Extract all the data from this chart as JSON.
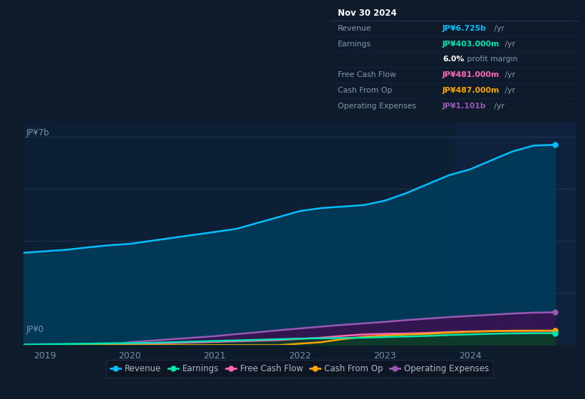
{
  "background_color": "#0d1b2a",
  "plot_bg_color": "#0d1f35",
  "highlight_bg_color": "#112240",
  "ylabel_top": "JP¥7b",
  "ylabel_bottom": "JP¥0",
  "x_ticks": [
    2019.0,
    2020.0,
    2021.0,
    2022.0,
    2023.0,
    2024.0
  ],
  "x_range": [
    2018.75,
    2025.25
  ],
  "y_range": [
    0,
    7500000000
  ],
  "series": {
    "Revenue": {
      "color": "#00bfff",
      "fill_color": "#003d5c",
      "x": [
        2018.75,
        2019.0,
        2019.25,
        2019.5,
        2019.75,
        2020.0,
        2020.25,
        2020.5,
        2020.75,
        2021.0,
        2021.25,
        2021.5,
        2021.75,
        2022.0,
        2022.25,
        2022.5,
        2022.75,
        2023.0,
        2023.25,
        2023.5,
        2023.75,
        2024.0,
        2024.25,
        2024.5,
        2024.75,
        2025.0
      ],
      "y": [
        3100,
        3150,
        3200,
        3280,
        3350,
        3400,
        3500,
        3600,
        3700,
        3800,
        3900,
        4100,
        4300,
        4500,
        4600,
        4650,
        4700,
        4850,
        5100,
        5400,
        5700,
        5900,
        6200,
        6500,
        6700,
        6725
      ]
    },
    "Earnings": {
      "color": "#00e5b0",
      "fill_color": "#003d30",
      "x": [
        2018.75,
        2019.0,
        2019.25,
        2019.5,
        2019.75,
        2020.0,
        2020.25,
        2020.5,
        2020.75,
        2021.0,
        2021.25,
        2021.5,
        2021.75,
        2022.0,
        2022.25,
        2022.5,
        2022.75,
        2023.0,
        2023.25,
        2023.5,
        2023.75,
        2024.0,
        2024.25,
        2024.5,
        2024.75,
        2025.0
      ],
      "y": [
        20,
        30,
        40,
        50,
        60,
        70,
        80,
        100,
        120,
        140,
        160,
        180,
        200,
        220,
        230,
        240,
        250,
        270,
        290,
        310,
        340,
        360,
        380,
        395,
        400,
        403
      ]
    },
    "Free Cash Flow": {
      "color": "#ff69b4",
      "fill_color": "#5a1030",
      "x": [
        2018.75,
        2019.0,
        2019.25,
        2019.5,
        2019.75,
        2020.0,
        2020.25,
        2020.5,
        2020.75,
        2021.0,
        2021.25,
        2021.5,
        2021.75,
        2022.0,
        2022.25,
        2022.5,
        2022.75,
        2023.0,
        2023.25,
        2023.5,
        2023.75,
        2024.0,
        2024.25,
        2024.5,
        2024.75,
        2025.0
      ],
      "y": [
        0,
        5,
        10,
        20,
        30,
        40,
        50,
        70,
        90,
        110,
        130,
        150,
        170,
        210,
        250,
        310,
        360,
        380,
        390,
        410,
        440,
        460,
        470,
        480,
        480,
        481
      ]
    },
    "Cash From Op": {
      "color": "#ffa500",
      "fill_color": "#5a3000",
      "x": [
        2018.75,
        2019.0,
        2019.25,
        2019.5,
        2019.75,
        2020.0,
        2020.25,
        2020.5,
        2020.75,
        2021.0,
        2021.25,
        2021.5,
        2021.75,
        2022.0,
        2022.25,
        2022.5,
        2022.75,
        2023.0,
        2023.25,
        2023.5,
        2023.75,
        2024.0,
        2024.25,
        2024.5,
        2024.75,
        2025.0
      ],
      "y": [
        0,
        0,
        0,
        0,
        0,
        0,
        0,
        0,
        0,
        0,
        0,
        0,
        0,
        50,
        100,
        200,
        280,
        320,
        360,
        380,
        420,
        450,
        470,
        485,
        487,
        487
      ]
    },
    "Operating Expenses": {
      "color": "#9b59b6",
      "fill_color": "#3a1050",
      "x": [
        2018.75,
        2019.0,
        2019.25,
        2019.5,
        2019.75,
        2020.0,
        2020.25,
        2020.5,
        2020.75,
        2021.0,
        2021.25,
        2021.5,
        2021.75,
        2022.0,
        2022.25,
        2022.5,
        2022.75,
        2023.0,
        2023.25,
        2023.5,
        2023.75,
        2024.0,
        2024.25,
        2024.5,
        2024.75,
        2025.0
      ],
      "y": [
        0,
        0,
        0,
        0,
        0,
        100,
        150,
        200,
        250,
        300,
        370,
        430,
        500,
        560,
        620,
        680,
        730,
        780,
        840,
        890,
        940,
        980,
        1020,
        1060,
        1090,
        1101
      ]
    }
  },
  "legend": [
    {
      "label": "Revenue",
      "color": "#00bfff"
    },
    {
      "label": "Earnings",
      "color": "#00e5b0"
    },
    {
      "label": "Free Cash Flow",
      "color": "#ff69b4"
    },
    {
      "label": "Cash From Op",
      "color": "#ffa500"
    },
    {
      "label": "Operating Expenses",
      "color": "#9b59b6"
    }
  ],
  "highlight_x_start": 2023.83,
  "highlight_x_end": 2025.25,
  "scale_factor": 1000000,
  "info_box_rows": [
    {
      "label": "Nov 30 2024",
      "value": "",
      "label_color": "#ffffff",
      "value_color": "#ffffff",
      "bold_label": true,
      "is_title": true
    },
    {
      "label": "Revenue",
      "value": "JP¥6.725b",
      "suffix": " /yr",
      "label_color": "#8899aa",
      "value_color": "#00bfff",
      "bold_label": false
    },
    {
      "label": "Earnings",
      "value": "JP¥403.000m",
      "suffix": " /yr",
      "label_color": "#8899aa",
      "value_color": "#00e5b0",
      "bold_label": false
    },
    {
      "label": "",
      "value": "6.0%",
      "suffix": " profit margin",
      "label_color": "#8899aa",
      "value_color": "#ffffff",
      "bold_label": false
    },
    {
      "label": "Free Cash Flow",
      "value": "JP¥481.000m",
      "suffix": " /yr",
      "label_color": "#8899aa",
      "value_color": "#ff69b4",
      "bold_label": false
    },
    {
      "label": "Cash From Op",
      "value": "JP¥487.000m",
      "suffix": " /yr",
      "label_color": "#8899aa",
      "value_color": "#ffa500",
      "bold_label": false
    },
    {
      "label": "Operating Expenses",
      "value": "JP¥1.101b",
      "suffix": " /yr",
      "label_color": "#8899aa",
      "value_color": "#9b59b6",
      "bold_label": false
    }
  ]
}
